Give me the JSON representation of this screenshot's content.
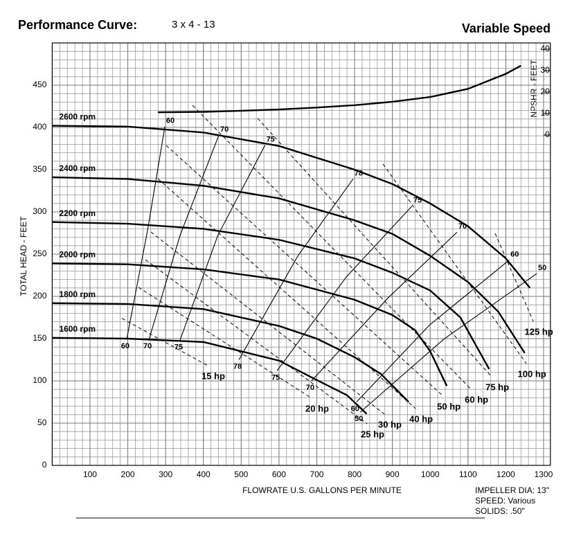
{
  "chart_data": {
    "type": "line",
    "title": "Performance Curve:",
    "subtitle": "3 x 4 - 13",
    "title_right": "Variable Speed",
    "x_label": "FLOWRATE U.S. GALLONS PER MINUTE",
    "y_label": "TOTAL HEAD - FEET",
    "y2_label": "NPSHR - FEET",
    "xlim": [
      0,
      1318
    ],
    "ylim": [
      0,
      500
    ],
    "y2lim": [
      -153.9,
      42.9
    ],
    "xticks": [
      100,
      200,
      300,
      400,
      500,
      600,
      700,
      800,
      900,
      1000,
      1100,
      1200,
      1300
    ],
    "yticks": [
      0,
      50,
      100,
      150,
      200,
      250,
      300,
      350,
      400,
      450
    ],
    "y2ticks": [
      0,
      10,
      20,
      30,
      40
    ],
    "grid": true,
    "series": [
      {
        "name": "2600 rpm",
        "color": "#000000",
        "x": [
          0,
          200,
          400,
          600,
          800,
          900,
          1000,
          1100,
          1200,
          1264
        ],
        "values": [
          402,
          401,
          394,
          378,
          350,
          333,
          310,
          283,
          245,
          210
        ]
      },
      {
        "name": "2400 rpm",
        "color": "#000000",
        "x": [
          0,
          200,
          400,
          600,
          800,
          900,
          1000,
          1100,
          1180,
          1250
        ],
        "values": [
          341,
          339,
          331,
          316,
          290,
          274,
          248,
          217,
          182,
          133
        ]
      },
      {
        "name": "2200 rpm",
        "color": "#000000",
        "x": [
          0,
          200,
          400,
          600,
          800,
          900,
          1000,
          1080,
          1156
        ],
        "values": [
          288,
          286,
          280,
          267,
          245,
          228,
          207,
          175,
          114
        ]
      },
      {
        "name": "2000 rpm",
        "color": "#000000",
        "x": [
          0,
          200,
          400,
          600,
          800,
          900,
          960,
          1000,
          1044
        ],
        "values": [
          239,
          238,
          232,
          220,
          196,
          178,
          160,
          135,
          94
        ]
      },
      {
        "name": "1800 rpm",
        "color": "#000000",
        "x": [
          0,
          200,
          400,
          600,
          700,
          800,
          870,
          943
        ],
        "values": [
          192,
          191,
          185,
          165,
          150,
          128,
          108,
          75
        ]
      },
      {
        "name": "1600 rpm",
        "color": "#000000",
        "x": [
          0,
          200,
          400,
          600,
          700,
          780,
          832
        ],
        "values": [
          151,
          150,
          146,
          124,
          101,
          83,
          61
        ]
      },
      {
        "axis": "y2",
        "color": "#000000",
        "x": [
          280,
          400,
          500,
          600,
          700,
          800,
          900,
          1000,
          1100,
          1200,
          1240
        ],
        "values": [
          10.6,
          10.8,
          11.3,
          11.9,
          12.8,
          13.9,
          15.5,
          17.7,
          21.5,
          28.5,
          32.3
        ]
      }
    ],
    "efficiency_lines": [
      {
        "label": "60",
        "x": [
          197,
          253,
          298
        ],
        "values": [
          149,
          280,
          401
        ]
      },
      {
        "label": "70",
        "x": [
          256,
          338,
          441
        ],
        "values": [
          149,
          272,
          391
        ]
      },
      {
        "label": "75",
        "x": [
          338,
          438,
          563
        ],
        "values": [
          148,
          272,
          379
        ]
      },
      {
        "label": "78",
        "x": [
          494,
          650,
          796
        ],
        "values": [
          125,
          248,
          339
        ]
      },
      {
        "label": "75",
        "x": [
          595,
          778,
          952
        ],
        "values": [
          112,
          223,
          307
        ]
      },
      {
        "label": "70",
        "x": [
          686,
          888,
          1071
        ],
        "values": [
          100,
          198,
          276
        ]
      },
      {
        "label": "60",
        "x": [
          805,
          998,
          1209
        ],
        "values": [
          75,
          166,
          243
        ]
      },
      {
        "label": "50",
        "x": [
          815,
          1035,
          1282
        ],
        "values": [
          63,
          149,
          227
        ]
      }
    ],
    "power_lines": [
      {
        "label": "15 hp",
        "x": [
          184.4,
          411.5
        ],
        "values": [
          174,
          118
        ]
      },
      {
        "label": "20 hp",
        "x": [
          228.3,
          686.3
        ],
        "values": [
          210.7,
          79.5
        ]
      },
      {
        "label": "25 hp",
        "x": [
          246.6,
          832.9
        ],
        "values": [
          243.4,
          49.2
        ]
      },
      {
        "label": "30 hp",
        "x": [
          261.3,
          878.7
        ],
        "values": [
          276.2,
          60.7
        ]
      },
      {
        "label": "40 hp",
        "x": [
          279.6,
          961.3
        ],
        "values": [
          339.3,
          67.2
        ]
      },
      {
        "label": "50 hp",
        "x": [
          301.6,
          1034.6
        ],
        "values": [
          378.7,
          82
        ]
      },
      {
        "label": "60 hp",
        "x": [
          371.3,
          1107.9
        ],
        "values": [
          426.2,
          90.2
        ]
      },
      {
        "label": "75 hp",
        "x": [
          543.6,
          1162.8
        ],
        "values": [
          410.7,
          104.9
        ]
      },
      {
        "label": "100 hp",
        "x": [
          875.1,
          1254.5
        ],
        "values": [
          356.6,
          120.5
        ]
      },
      {
        "label": "125 hp",
        "x": [
          1171.8,
          1272.8
        ],
        "values": [
          274.6,
          170.5
        ]
      }
    ],
    "notes": [
      "IMPELLER DIA: 13\"",
      "SPEED: Various",
      "SOLIDS: .50\""
    ]
  }
}
